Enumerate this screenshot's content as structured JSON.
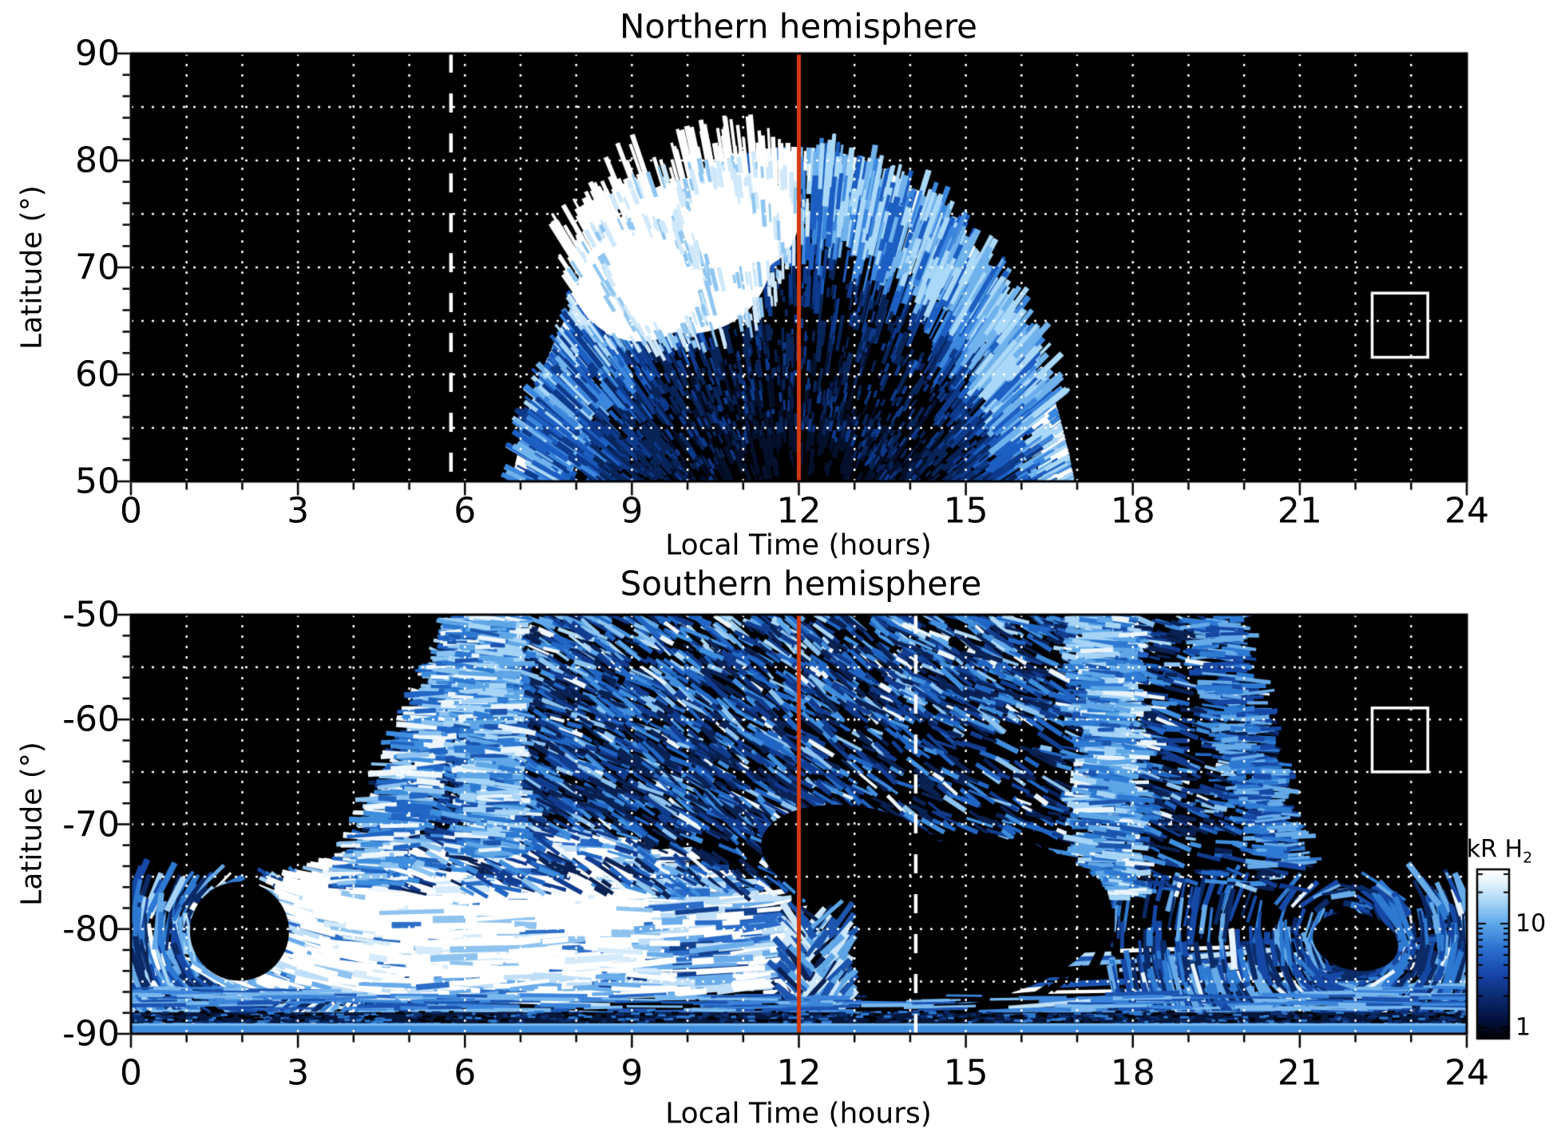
{
  "figure_bg": "#ffffff",
  "colors": {
    "plot_background": "#000000",
    "grid": "#ffffff",
    "frame": "#000000",
    "red_line": "#d23b10",
    "dashed_line": "#ffffff",
    "box": "#ffffff",
    "scale": [
      "#000000",
      "#03103a",
      "#0a2566",
      "#1746a8",
      "#2b6fd0",
      "#5fa8ea",
      "#aed9f7",
      "#eaf6fe",
      "#ffffff"
    ]
  },
  "chart_data": [
    {
      "type": "heatmap",
      "title": "Northern hemisphere",
      "xlabel": "Local Time (hours)",
      "ylabel": "Latitude (°)",
      "x_range": [
        0,
        24
      ],
      "y_range": [
        50,
        90
      ],
      "xticks": [
        0,
        3,
        6,
        9,
        12,
        15,
        18,
        21,
        24
      ],
      "yticks": [
        90,
        80,
        70,
        60,
        50
      ],
      "x_minor_step": 1,
      "y_minor_step": 2,
      "grid": {
        "x_step": 1,
        "y_step": 5,
        "style": "dotted",
        "color": "#ffffff"
      },
      "annotations": {
        "red_line": {
          "x": 12,
          "color": "#d23b10",
          "style": "solid"
        },
        "dashed_line": {
          "x": 5.75,
          "color": "#ffffff",
          "style": "dashed"
        },
        "box": {
          "x": [
            22.3,
            23.3
          ],
          "y": [
            61.6,
            67.6
          ],
          "color": "#ffffff"
        }
      },
      "emission": {
        "description": "dayside auroral emission fan of radial streaks on black background",
        "local_time_extent": [
          7,
          17
        ],
        "peak_latitude": 80,
        "bright_patch": {
          "local_time": [
            8.6,
            11.4
          ],
          "latitude": [
            64,
            78
          ]
        },
        "units": "kR H2",
        "seed": 11
      }
    },
    {
      "type": "heatmap",
      "title": "Southern hemisphere",
      "xlabel": "Local Time (hours)",
      "ylabel": "Latitude (°)",
      "x_range": [
        0,
        24
      ],
      "y_range": [
        -90,
        -50
      ],
      "xticks": [
        0,
        3,
        6,
        9,
        12,
        15,
        18,
        21,
        24
      ],
      "yticks": [
        -50,
        -60,
        -70,
        -80,
        -90
      ],
      "x_minor_step": 1,
      "y_minor_step": 2,
      "grid": {
        "x_step": 1,
        "y_step": 5,
        "style": "dotted",
        "color": "#ffffff"
      },
      "annotations": {
        "red_line": {
          "x": 12,
          "color": "#d23b10",
          "style": "solid"
        },
        "dashed_line": {
          "x": 14.1,
          "color": "#ffffff",
          "style": "dashed"
        },
        "box": {
          "x": [
            22.3,
            23.3
          ],
          "y": [
            -58.9,
            -65.0
          ],
          "color": "#ffffff"
        }
      },
      "emission": {
        "description": "widespread speckled auroral emission with bright dawn-side crescent and dark afternoon cavity",
        "speckle_local_time": [
          4,
          20
        ],
        "speckle_latitude": [
          -50,
          -76
        ],
        "bright_columns_local_time": [
          6.5,
          17.6
        ],
        "bright_crescent": {
          "local_time": [
            2,
            11.5
          ],
          "latitude": [
            -71,
            -87
          ]
        },
        "dark_region": {
          "local_time": [
            12,
            17.5
          ],
          "latitude": [
            -72,
            -87
          ]
        },
        "polar_band_latitude": [
          -83,
          -90
        ],
        "units": "kR H2",
        "seed": 77
      }
    }
  ],
  "colorbar": {
    "title_main": "kR H",
    "title_sub": "2",
    "tick_labels": [
      "10",
      "1"
    ],
    "tick_values": [
      10,
      1
    ],
    "scale": "log"
  }
}
